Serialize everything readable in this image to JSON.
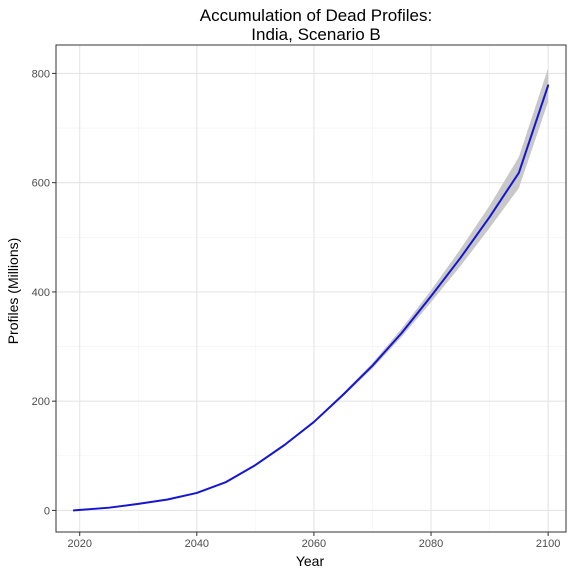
{
  "chart_data": {
    "type": "line",
    "title_lines": [
      "Accumulation of Dead Profiles:",
      "India, Scenario B"
    ],
    "xlabel": "Year",
    "ylabel": "Profiles (Millions)",
    "xlim": [
      2015.95,
      2103.05
    ],
    "ylim": [
      -39.5,
      852
    ],
    "x_ticks": [
      2020,
      2040,
      2060,
      2080,
      2100
    ],
    "y_ticks": [
      0,
      200,
      400,
      600,
      800
    ],
    "grid": true,
    "legend": "none",
    "colors": {
      "line": "#1515d4",
      "band": "#c8c8c8",
      "grid_major": "#e5e5e5",
      "grid_minor": "#f2f2f2",
      "border": "#333333"
    },
    "series": [
      {
        "x": [
          2019,
          2025,
          2030,
          2035,
          2040,
          2045,
          2050,
          2055,
          2060,
          2065,
          2070,
          2075,
          2080,
          2085,
          2090,
          2095,
          2100
        ],
        "y": [
          0,
          5,
          12,
          20,
          32,
          52,
          83,
          120,
          162,
          212,
          265,
          325,
          392,
          462,
          537,
          618,
          778
        ],
        "lower": [
          0,
          5,
          12,
          20,
          32,
          52,
          83,
          119,
          160,
          209,
          260,
          318,
          381,
          447,
          517,
          590,
          748
        ],
        "upper": [
          0,
          5,
          12,
          20,
          32,
          52,
          83,
          121,
          164,
          215,
          270,
          333,
          403,
          478,
          558,
          647,
          810
        ]
      }
    ]
  }
}
